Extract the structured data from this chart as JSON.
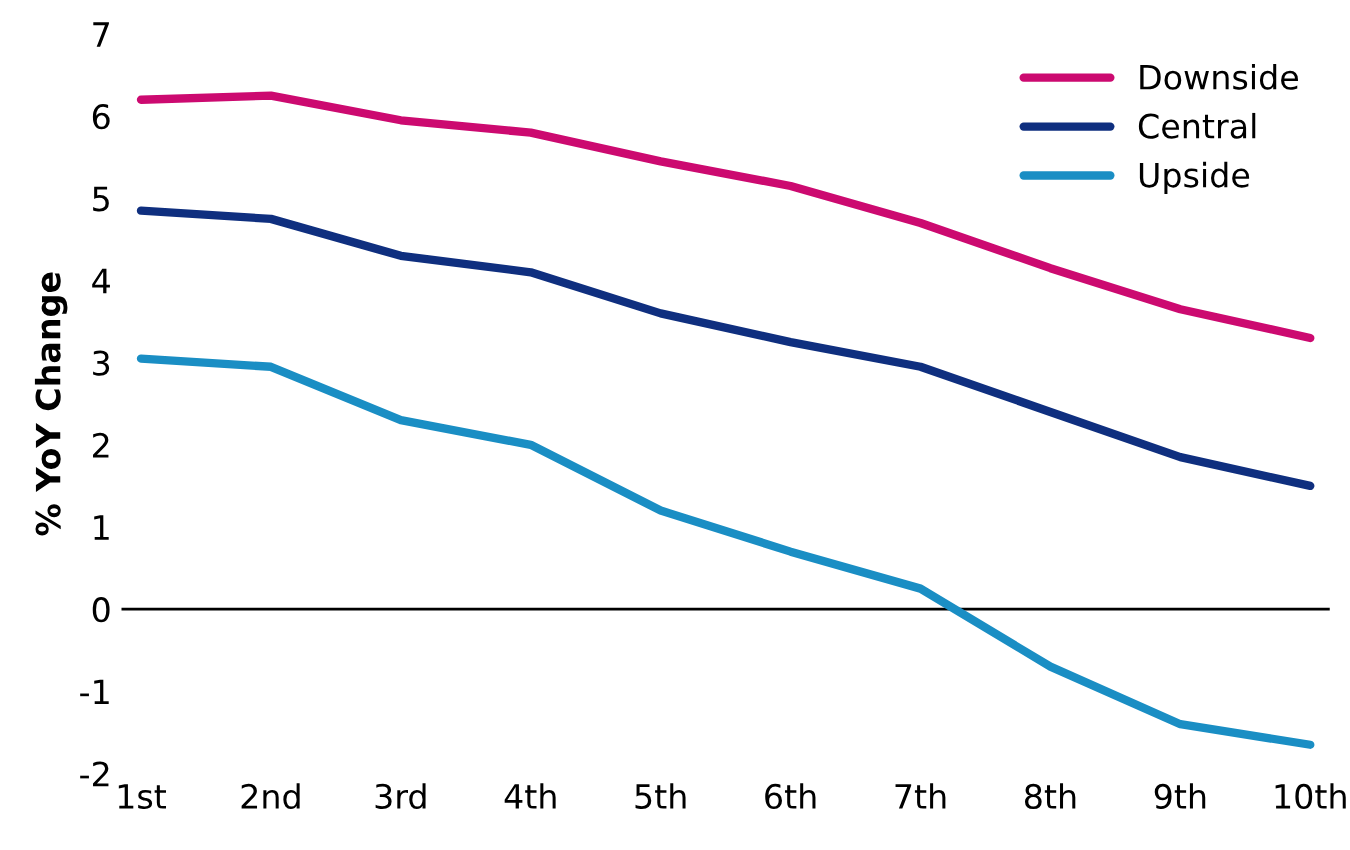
{
  "chart_data": {
    "type": "line",
    "ylabel": "% YoY Change",
    "categories": [
      "1st",
      "2nd",
      "3rd",
      "4th",
      "5th",
      "6th",
      "7th",
      "8th",
      "9th",
      "10th"
    ],
    "series": [
      {
        "name": "Downside",
        "color": "#cc0a70",
        "values": [
          6.2,
          6.25,
          5.95,
          5.8,
          5.45,
          5.15,
          4.7,
          4.15,
          3.65,
          3.3
        ]
      },
      {
        "name": "Central",
        "color": "#0f2f7f",
        "values": [
          4.85,
          4.75,
          4.3,
          4.1,
          3.6,
          3.25,
          2.95,
          2.4,
          1.85,
          1.5
        ]
      },
      {
        "name": "Upside",
        "color": "#1a8ec4",
        "values": [
          3.05,
          2.95,
          2.3,
          2.0,
          1.2,
          0.7,
          0.25,
          -0.7,
          -1.4,
          -1.65
        ]
      }
    ],
    "ylim": [
      -2,
      7
    ],
    "yticks": [
      -2,
      -1,
      0,
      1,
      2,
      3,
      4,
      5,
      6,
      7
    ],
    "ref_lines": [
      {
        "axis": "y",
        "value": 0,
        "color": "#000000"
      }
    ],
    "grid": false,
    "legend": "top right",
    "marker": "none",
    "line_style": "solid"
  }
}
